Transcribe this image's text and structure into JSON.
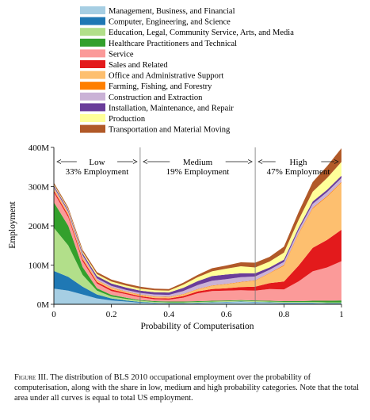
{
  "chart_data": {
    "type": "area",
    "stacked": true,
    "xlabel": "Probability of Computerisation",
    "ylabel": "Employment",
    "xlim": [
      0,
      1
    ],
    "ylim": [
      0,
      400
    ],
    "x_ticks": [
      0,
      0.2,
      0.4,
      0.6,
      0.8,
      1
    ],
    "x_tick_labels": [
      "0",
      "0.2",
      "0.4",
      "0.6",
      "0.8",
      "1"
    ],
    "y_ticks": [
      0,
      100,
      200,
      300,
      400
    ],
    "y_tick_labels": [
      "0M",
      "100M",
      "200M",
      "300M",
      "400M"
    ],
    "legend_position": "top",
    "regions": [
      {
        "range": [
          0,
          0.3
        ],
        "label_name": "Low",
        "label_share": "33% Employment"
      },
      {
        "range": [
          0.3,
          0.7
        ],
        "label_name": "Medium",
        "label_share": "19% Employment"
      },
      {
        "range": [
          0.7,
          1
        ],
        "label_name": "High",
        "label_share": "47% Employment"
      }
    ],
    "boundaries": [
      0.3,
      0.7
    ],
    "x": [
      0,
      0.05,
      0.1,
      0.15,
      0.2,
      0.25,
      0.3,
      0.35,
      0.4,
      0.45,
      0.5,
      0.55,
      0.6,
      0.65,
      0.7,
      0.75,
      0.8,
      0.85,
      0.9,
      0.95,
      1
    ],
    "series": [
      {
        "name": "Management, Business, and Financial",
        "color": "#a6cee3",
        "values": [
          40,
          35,
          25,
          15,
          10,
          7,
          4,
          3,
          2,
          2,
          3,
          4,
          5,
          6,
          5,
          4,
          3,
          3,
          3,
          2,
          2
        ]
      },
      {
        "name": "Computer, Engineering, and Science",
        "color": "#1f78b4",
        "values": [
          45,
          35,
          20,
          10,
          5,
          3,
          2,
          1,
          1,
          1,
          1,
          1,
          1,
          1,
          1,
          1,
          1,
          1,
          1,
          1,
          1
        ]
      },
      {
        "name": "Education, Legal, Community Service, Arts, and Media",
        "color": "#b2df8a",
        "values": [
          110,
          80,
          30,
          10,
          5,
          4,
          3,
          2,
          2,
          2,
          2,
          2,
          2,
          2,
          2,
          2,
          2,
          2,
          2,
          2,
          2
        ]
      },
      {
        "name": "Healthcare Practitioners and Technical",
        "color": "#33a02c",
        "values": [
          65,
          50,
          20,
          6,
          4,
          3,
          2,
          2,
          2,
          2,
          2,
          2,
          2,
          2,
          2,
          2,
          2,
          2,
          3,
          4,
          5
        ]
      },
      {
        "name": "Service",
        "color": "#fb9a99",
        "values": [
          25,
          22,
          15,
          12,
          10,
          9,
          7,
          5,
          5,
          10,
          20,
          25,
          25,
          25,
          25,
          30,
          30,
          50,
          75,
          85,
          100
        ]
      },
      {
        "name": "Sales and Related",
        "color": "#e31a1c",
        "values": [
          5,
          5,
          5,
          4,
          4,
          3,
          3,
          3,
          3,
          4,
          5,
          5,
          6,
          8,
          10,
          15,
          20,
          40,
          60,
          70,
          80
        ]
      },
      {
        "name": "Office and Administrative Support",
        "color": "#fdbf6f",
        "values": [
          5,
          5,
          5,
          4,
          4,
          3,
          3,
          3,
          3,
          4,
          5,
          8,
          10,
          12,
          15,
          25,
          40,
          80,
          100,
          110,
          120
        ]
      },
      {
        "name": "Farming, Fishing, and Forestry",
        "color": "#ff7f00",
        "values": [
          1,
          1,
          1,
          1,
          1,
          1,
          1,
          1,
          1,
          1,
          1,
          1,
          1,
          1,
          1,
          1,
          2,
          2,
          2,
          2,
          2
        ]
      },
      {
        "name": "Construction and Extraction",
        "color": "#cab2d6",
        "values": [
          3,
          3,
          4,
          4,
          4,
          4,
          4,
          5,
          5,
          8,
          10,
          12,
          12,
          12,
          10,
          8,
          8,
          8,
          10,
          10,
          10
        ]
      },
      {
        "name": "Installation, Maintenance, and Repair",
        "color": "#6a3d9a",
        "values": [
          4,
          4,
          5,
          6,
          6,
          6,
          6,
          6,
          6,
          8,
          10,
          12,
          12,
          10,
          8,
          6,
          6,
          6,
          6,
          6,
          6
        ]
      },
      {
        "name": "Production",
        "color": "#ffff99",
        "values": [
          3,
          3,
          4,
          5,
          5,
          5,
          5,
          5,
          5,
          8,
          10,
          12,
          15,
          18,
          15,
          15,
          18,
          20,
          25,
          30,
          35
        ]
      },
      {
        "name": "Transportation and Material Moving",
        "color": "#b15928",
        "values": [
          4,
          4,
          5,
          5,
          5,
          5,
          5,
          4,
          4,
          5,
          6,
          8,
          8,
          10,
          12,
          12,
          15,
          20,
          25,
          30,
          35
        ]
      }
    ]
  },
  "caption": {
    "lead": "Figure III.",
    "text": " The distribution of BLS 2010 occupational employment over the probability of computerisation, along with the share in low, medium and high probability categories. Note that the total area under all curves is equal to total US employment."
  }
}
